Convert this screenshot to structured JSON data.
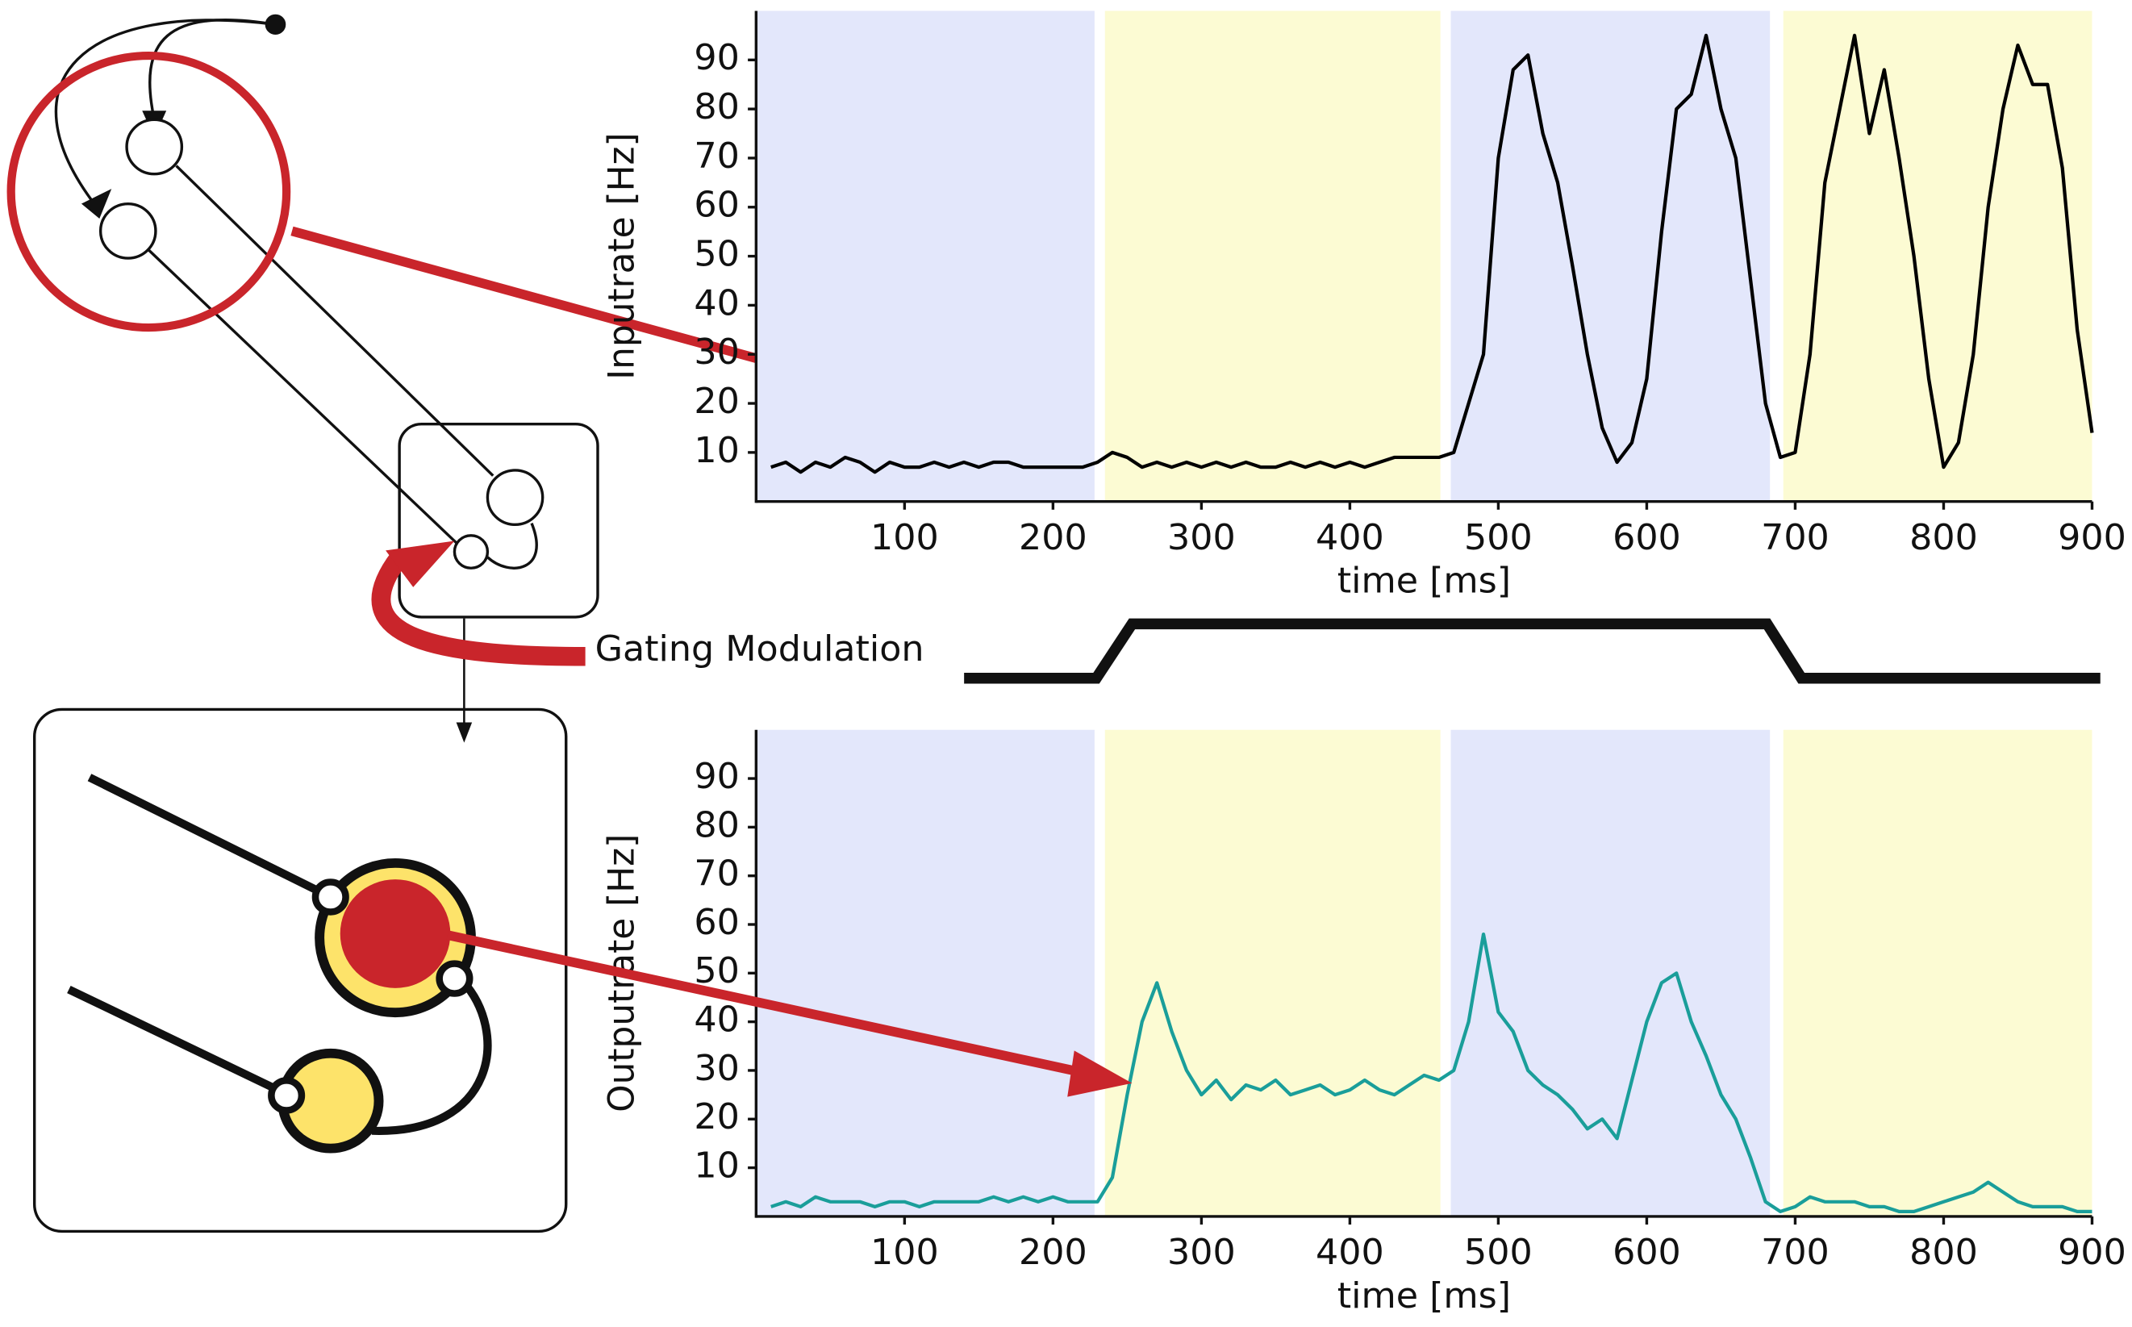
{
  "annotation": "Gating Modulation",
  "chart_data": [
    {
      "type": "line",
      "xlabel": "time [ms]",
      "ylabel": "Inputrate [Hz]",
      "xlim": [
        0,
        900
      ],
      "ylim": [
        0,
        100
      ],
      "xticks": [
        100,
        200,
        300,
        400,
        500,
        600,
        700,
        800,
        900
      ],
      "yticks": [
        10,
        20,
        30,
        40,
        50,
        60,
        70,
        80,
        90
      ],
      "shaded_regions": [
        {
          "xmin": 0,
          "xmax": 228,
          "color": "#e3e7fb"
        },
        {
          "xmin": 235,
          "xmax": 461,
          "color": "#fcfbd3"
        },
        {
          "xmin": 468,
          "xmax": 683,
          "color": "#e3e7fb"
        },
        {
          "xmin": 692,
          "xmax": 900,
          "color": "#fcfbd3"
        }
      ],
      "x": [
        10,
        20,
        30,
        40,
        50,
        60,
        70,
        80,
        90,
        100,
        110,
        120,
        130,
        140,
        150,
        160,
        170,
        180,
        190,
        200,
        210,
        220,
        230,
        240,
        250,
        260,
        270,
        280,
        290,
        300,
        310,
        320,
        330,
        340,
        350,
        360,
        370,
        380,
        390,
        400,
        410,
        420,
        430,
        440,
        450,
        460,
        470,
        480,
        490,
        500,
        510,
        520,
        530,
        540,
        550,
        560,
        570,
        580,
        590,
        600,
        610,
        620,
        630,
        640,
        650,
        660,
        670,
        680,
        690,
        700,
        710,
        720,
        730,
        740,
        750,
        760,
        770,
        780,
        790,
        800,
        810,
        820,
        830,
        840,
        850,
        860,
        870,
        880,
        890,
        900
      ],
      "series": [
        {
          "color": "#000000",
          "values": [
            7,
            8,
            6,
            8,
            7,
            9,
            8,
            6,
            8,
            7,
            7,
            8,
            7,
            8,
            7,
            8,
            8,
            7,
            7,
            7,
            7,
            7,
            8,
            10,
            9,
            7,
            8,
            7,
            8,
            7,
            8,
            7,
            8,
            7,
            7,
            8,
            7,
            8,
            7,
            8,
            7,
            8,
            9,
            9,
            9,
            9,
            10,
            20,
            30,
            70,
            88,
            91,
            75,
            65,
            48,
            30,
            15,
            8,
            12,
            25,
            55,
            80,
            83,
            95,
            80,
            70,
            45,
            20,
            9,
            10,
            30,
            65,
            80,
            95,
            75,
            88,
            70,
            50,
            25,
            7,
            12,
            30,
            60,
            80,
            93,
            85,
            85,
            68,
            35,
            14
          ]
        }
      ]
    },
    {
      "type": "line",
      "xlabel": "time [ms]",
      "ylabel": "Outputrate [Hz]",
      "xlim": [
        0,
        900
      ],
      "ylim": [
        0,
        100
      ],
      "xticks": [
        100,
        200,
        300,
        400,
        500,
        600,
        700,
        800,
        900
      ],
      "yticks": [
        10,
        20,
        30,
        40,
        50,
        60,
        70,
        80,
        90
      ],
      "shaded_regions": [
        {
          "xmin": 0,
          "xmax": 228,
          "color": "#e3e7fb"
        },
        {
          "xmin": 235,
          "xmax": 461,
          "color": "#fcfbd3"
        },
        {
          "xmin": 468,
          "xmax": 683,
          "color": "#e3e7fb"
        },
        {
          "xmin": 692,
          "xmax": 900,
          "color": "#fcfbd3"
        }
      ],
      "x": [
        10,
        20,
        30,
        40,
        50,
        60,
        70,
        80,
        90,
        100,
        110,
        120,
        130,
        140,
        150,
        160,
        170,
        180,
        190,
        200,
        210,
        220,
        230,
        240,
        250,
        260,
        270,
        280,
        290,
        300,
        310,
        320,
        330,
        340,
        350,
        360,
        370,
        380,
        390,
        400,
        410,
        420,
        430,
        440,
        450,
        460,
        470,
        480,
        490,
        500,
        510,
        520,
        530,
        540,
        550,
        560,
        570,
        580,
        590,
        600,
        610,
        620,
        630,
        640,
        650,
        660,
        670,
        680,
        690,
        700,
        710,
        720,
        730,
        740,
        750,
        760,
        770,
        780,
        790,
        800,
        810,
        820,
        830,
        840,
        850,
        860,
        870,
        880,
        890,
        900
      ],
      "series": [
        {
          "color": "#1a9e9a",
          "values": [
            2,
            3,
            2,
            4,
            3,
            3,
            3,
            2,
            3,
            3,
            2,
            3,
            3,
            3,
            3,
            4,
            3,
            4,
            3,
            4,
            3,
            3,
            3,
            8,
            25,
            40,
            48,
            38,
            30,
            25,
            28,
            24,
            27,
            26,
            28,
            25,
            26,
            27,
            25,
            26,
            28,
            26,
            25,
            27,
            29,
            28,
            30,
            40,
            58,
            42,
            38,
            30,
            27,
            25,
            22,
            18,
            20,
            16,
            28,
            40,
            48,
            50,
            40,
            33,
            25,
            20,
            12,
            3,
            1,
            2,
            4,
            3,
            3,
            3,
            2,
            2,
            1,
            1,
            2,
            3,
            4,
            5,
            7,
            5,
            3,
            2,
            2,
            2,
            1,
            1
          ]
        }
      ]
    }
  ]
}
